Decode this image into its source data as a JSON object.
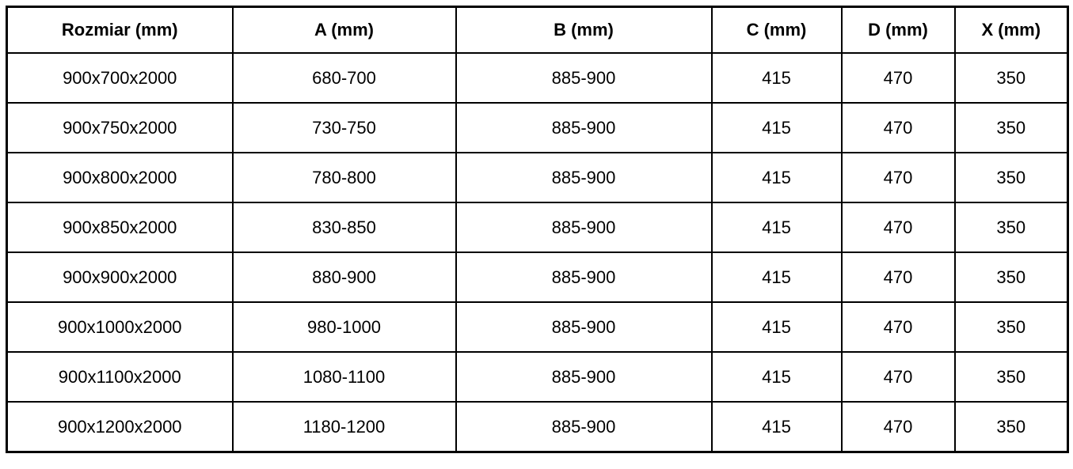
{
  "table": {
    "headers": [
      "Rozmiar (mm)",
      "A (mm)",
      "B (mm)",
      "C (mm)",
      "D (mm)",
      "X (mm)"
    ],
    "rows": [
      [
        "900x700x2000",
        "680-700",
        "885-900",
        "415",
        "470",
        "350"
      ],
      [
        "900x750x2000",
        "730-750",
        "885-900",
        "415",
        "470",
        "350"
      ],
      [
        "900x800x2000",
        "780-800",
        "885-900",
        "415",
        "470",
        "350"
      ],
      [
        "900x850x2000",
        "830-850",
        "885-900",
        "415",
        "470",
        "350"
      ],
      [
        "900x900x2000",
        "880-900",
        "885-900",
        "415",
        "470",
        "350"
      ],
      [
        "900x1000x2000",
        "980-1000",
        "885-900",
        "415",
        "470",
        "350"
      ],
      [
        "900x1100x2000",
        "1080-1100",
        "885-900",
        "415",
        "470",
        "350"
      ],
      [
        "900x1200x2000",
        "1180-1200",
        "885-900",
        "415",
        "470",
        "350"
      ]
    ]
  },
  "colors": {
    "border": "#000000",
    "background": "#ffffff",
    "text": "#000000"
  }
}
